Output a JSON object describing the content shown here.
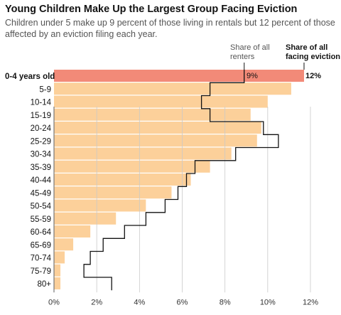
{
  "chart_data": {
    "type": "bar",
    "title": "Young Children Make Up the Largest Group Facing Eviction",
    "subtitle": "Children under 5 make up 9 percent of those living in rentals but 12 percent of those affected by an eviction filing each year.",
    "xlabel": "",
    "ylabel": "",
    "xlim": [
      0,
      12
    ],
    "x_ticks": [
      "0%",
      "2%",
      "4%",
      "6%",
      "8%",
      "10%",
      "12%"
    ],
    "x_tick_values": [
      0,
      2,
      4,
      6,
      8,
      10,
      12
    ],
    "grid": true,
    "categories": [
      "0-4 years old",
      "5-9",
      "10-14",
      "15-19",
      "20-24",
      "25-29",
      "30-34",
      "35-39",
      "40-44",
      "45-49",
      "50-54",
      "55-59",
      "60-64",
      "65-69",
      "70-74",
      "75-79",
      "80+"
    ],
    "series": [
      {
        "name": "Share of all facing eviction",
        "kind": "bars",
        "color": "#fcd09a",
        "highlight_color": "#f28a78",
        "values": [
          11.7,
          11.1,
          10.0,
          9.2,
          9.7,
          9.5,
          8.3,
          7.3,
          6.4,
          5.5,
          4.3,
          2.9,
          1.7,
          0.9,
          0.5,
          0.3,
          0.3
        ]
      },
      {
        "name": "Share of all renters",
        "kind": "step",
        "color": "#121212",
        "values": [
          8.9,
          7.3,
          6.9,
          7.3,
          9.8,
          10.5,
          8.5,
          6.6,
          6.2,
          5.8,
          5.2,
          4.3,
          3.3,
          2.3,
          1.7,
          1.4,
          2.7
        ]
      }
    ],
    "annotations": {
      "renters_label": [
        "Share of all",
        "renters"
      ],
      "eviction_label": [
        "Share of all",
        "facing eviction"
      ],
      "renters_value": "9%",
      "eviction_value": "12%"
    }
  }
}
